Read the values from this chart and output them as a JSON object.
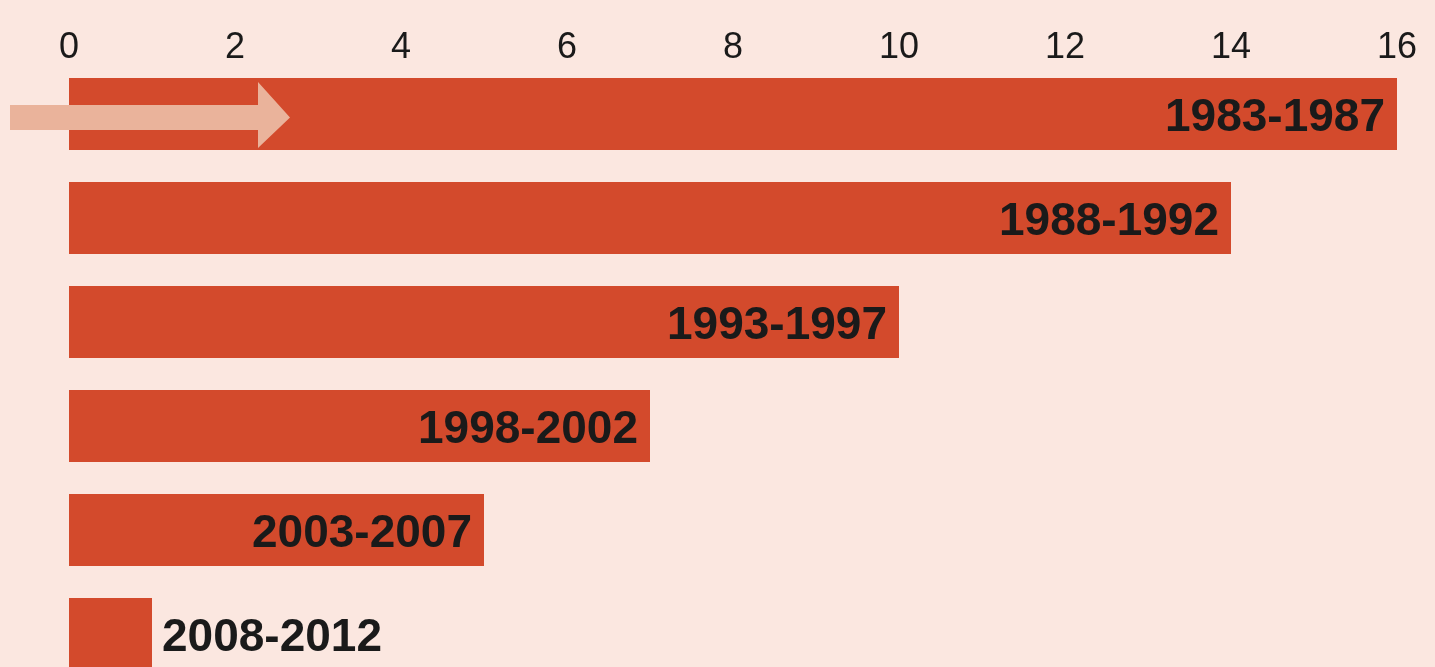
{
  "chart_data": {
    "type": "bar",
    "orientation": "horizontal",
    "categories": [
      "1983-1987",
      "1988-1992",
      "1993-1997",
      "1998-2002",
      "2003-2007",
      "2008-2012"
    ],
    "values": [
      16,
      14,
      10,
      7,
      5,
      1
    ],
    "color": "#d34a2c",
    "xlim": [
      0,
      16
    ],
    "xticks": [
      0,
      2,
      4,
      6,
      8,
      10,
      12,
      14,
      16
    ],
    "grid": false
  }
}
